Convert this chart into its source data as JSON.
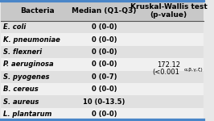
{
  "title_col1": "Bacteria",
  "title_col2": "Median (Q1-Q3)",
  "title_col3": "Kruskal-Wallis test\n(p-value)",
  "rows": [
    [
      "E. coli",
      "0 (0-0)"
    ],
    [
      "K. pneumoniae",
      "0 (0-0)"
    ],
    [
      "S. flexneri",
      "0 (0-0)"
    ],
    [
      "P. aeruginosa",
      "0 (0-0)"
    ],
    [
      "S. pyogenes",
      "0 (0-7)"
    ],
    [
      "B. cereus",
      "0 (0-0)"
    ],
    [
      "S. aureus",
      "10 (0-13.5)"
    ],
    [
      "L. plantarum",
      "0 (0-0)"
    ]
  ],
  "kw_stat": "172.12",
  "kw_pval": "(<0.001",
  "kw_super": "α,β,γ,ζ",
  "kw_pval_end": ")",
  "bg_color_header": "#c8c8c8",
  "bg_color_odd": "#e0e0e0",
  "bg_color_even": "#f0f0f0",
  "border_color": "#4a86c8",
  "header_font_size": 6.5,
  "cell_font_size": 6.0,
  "fig_bg": "#e8e8e8"
}
